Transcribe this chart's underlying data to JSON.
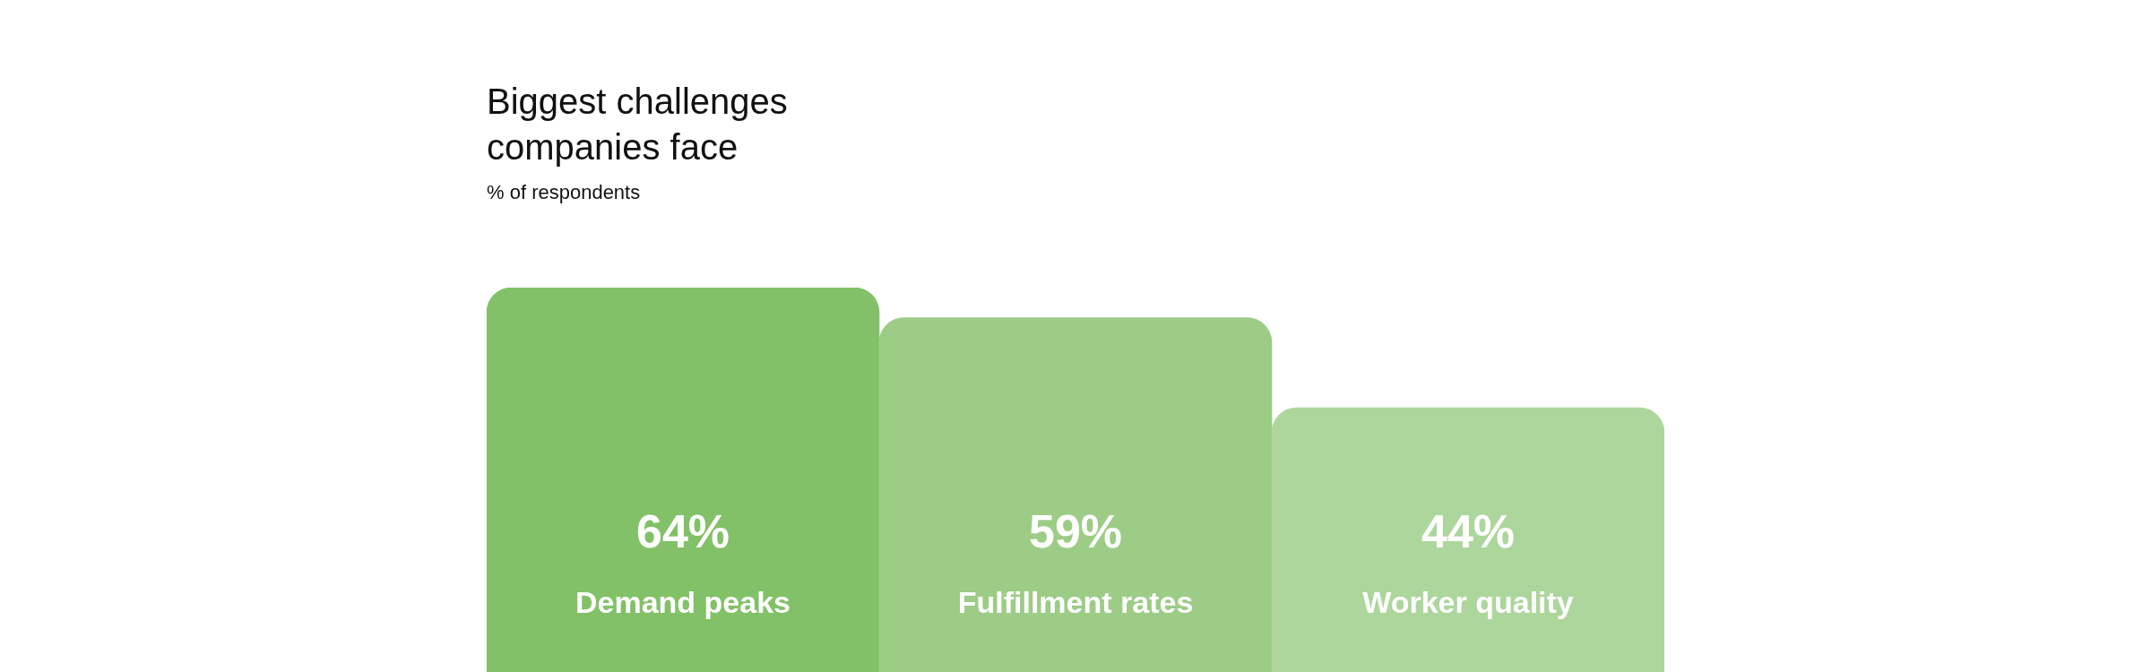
{
  "chart_data": {
    "type": "bar",
    "title": "Biggest challenges\ncompanies face",
    "subtitle": "% of respondents",
    "categories": [
      "Demand peaks",
      "Fulfillment rates",
      "Worker quality"
    ],
    "values": [
      64,
      59,
      44
    ],
    "colors": [
      "#82c168",
      "#9ccc86",
      "#add69c"
    ],
    "value_labels": [
      "64%",
      "59%",
      "44%"
    ]
  }
}
